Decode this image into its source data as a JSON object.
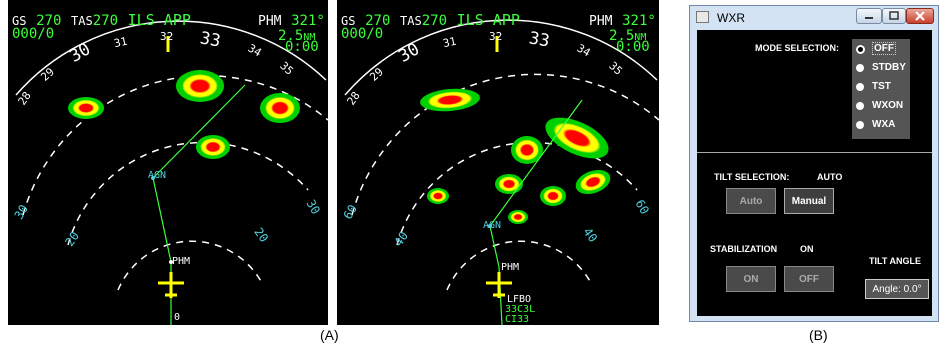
{
  "nd_a": {
    "gs_label": "GS",
    "gs_value": "270",
    "tas_label": "TAS",
    "tas_value": "270",
    "mode": "ILS APP",
    "waypoint": "PHM",
    "heading": "321°",
    "timer": "000/0",
    "dist_value": "2.5",
    "dist_unit": "NM",
    "eta": "0:00",
    "compass": [
      "28",
      "29",
      "30",
      "31",
      "32",
      "33",
      "34",
      "35"
    ],
    "range_left_outer": "30",
    "range_left_inner": "20",
    "range_right_outer": "30",
    "range_right_inner": "20",
    "fix_agn": "AGN",
    "fix_phm": "PHM",
    "bottom_text": "0"
  },
  "nd_b": {
    "gs_label": "GS",
    "gs_value": "270",
    "tas_label": "TAS",
    "tas_value": "270",
    "mode": "ILS APP",
    "waypoint": "PHM",
    "heading": "321°",
    "timer": "000/0",
    "dist_value": "2.5",
    "dist_unit": "NM",
    "eta": "0:00",
    "compass": [
      "28",
      "29",
      "30",
      "31",
      "32",
      "33",
      "34",
      "35"
    ],
    "range_left_outer": "60",
    "range_left_inner": "40",
    "range_right_outer": "60",
    "range_right_inner": "40",
    "fix_agn": "AGN",
    "fix_phm": "PHM",
    "fix_lfbo": "LFBO",
    "fix_33": "33C3L",
    "fix_cl": "CI33"
  },
  "captions": {
    "a": "(A)",
    "b": "(B)"
  },
  "wxr": {
    "title": "WXR",
    "mode_label": "MODE SELECTION:",
    "modes": [
      "OFF",
      "STDBY",
      "TST",
      "WXON",
      "WXA"
    ],
    "selected_mode": "OFF",
    "tilt_label": "TILT SELECTION:",
    "tilt_value": "AUTO",
    "auto_btn": "Auto",
    "manual_btn": "Manual",
    "stab_label": "STABILIZATION",
    "stab_value": "ON",
    "on_btn": "ON",
    "off_btn": "OFF",
    "tilt_angle_label": "TILT ANGLE",
    "angle_display": "Angle: 0.0°"
  }
}
